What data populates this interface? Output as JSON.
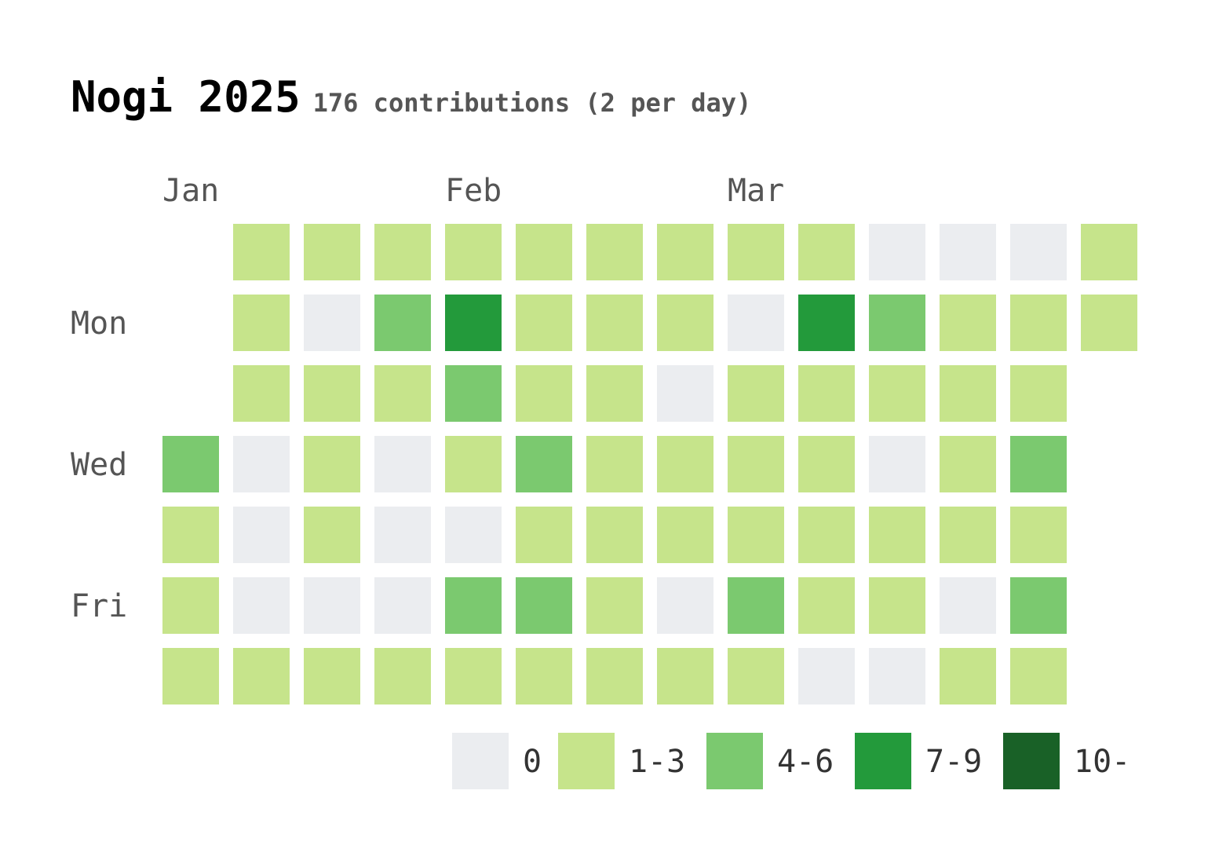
{
  "header": {
    "title": "Nogi 2025",
    "subtitle": "176 contributions (2 per day)"
  },
  "chart_data": {
    "type": "heatmap",
    "title": "Nogi 2025",
    "subtitle": "176 contributions (2 per day)",
    "months": [
      {
        "label": "Jan",
        "week": 0
      },
      {
        "label": "Feb",
        "week": 4
      },
      {
        "label": "Mar",
        "week": 8
      }
    ],
    "weekday_labels": [
      {
        "label": "Mon",
        "row": 1
      },
      {
        "label": "Wed",
        "row": 3
      },
      {
        "label": "Fri",
        "row": 5
      }
    ],
    "levels": [
      {
        "label": "0",
        "color": "#ebedf0"
      },
      {
        "label": "1-3",
        "color": "#c6e48b"
      },
      {
        "label": "4-6",
        "color": "#7bc96f"
      },
      {
        "label": "7-9",
        "color": "#239a3b"
      },
      {
        "label": "10-",
        "color": "#196127"
      }
    ],
    "weeks": [
      [
        null,
        null,
        null,
        2,
        1,
        1,
        1
      ],
      [
        1,
        1,
        1,
        0,
        0,
        0,
        1
      ],
      [
        1,
        0,
        1,
        1,
        1,
        0,
        1
      ],
      [
        1,
        2,
        1,
        0,
        0,
        0,
        1
      ],
      [
        1,
        3,
        2,
        1,
        0,
        2,
        1
      ],
      [
        1,
        1,
        1,
        2,
        1,
        2,
        1
      ],
      [
        1,
        1,
        1,
        1,
        1,
        1,
        1
      ],
      [
        1,
        1,
        0,
        1,
        1,
        0,
        1
      ],
      [
        1,
        0,
        1,
        1,
        1,
        2,
        1
      ],
      [
        1,
        3,
        1,
        1,
        1,
        1,
        0
      ],
      [
        0,
        2,
        1,
        0,
        1,
        1,
        0
      ],
      [
        0,
        1,
        1,
        1,
        1,
        0,
        1
      ],
      [
        0,
        1,
        1,
        2,
        1,
        2,
        1
      ],
      [
        1,
        1,
        null,
        null,
        null,
        null,
        null
      ]
    ]
  }
}
